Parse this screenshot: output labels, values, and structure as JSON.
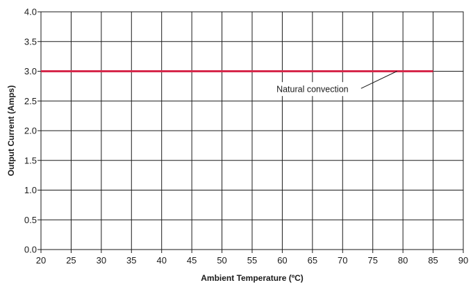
{
  "chart_data": {
    "type": "line",
    "title": "",
    "xlabel": "Ambient Temperature (ºC)",
    "ylabel": "Output Current (Amps)",
    "xlim": [
      20,
      90
    ],
    "ylim": [
      0,
      4
    ],
    "x_ticks": [
      20,
      25,
      30,
      35,
      40,
      45,
      50,
      55,
      60,
      65,
      70,
      75,
      80,
      85,
      90
    ],
    "y_ticks": [
      "0.0",
      "0.5",
      "1.0",
      "1.5",
      "2.0",
      "2.5",
      "3.0",
      "3.5",
      "4.0"
    ],
    "grid": true,
    "series": [
      {
        "name": "Natural convection",
        "color": "#d6284a",
        "x": [
          20,
          85
        ],
        "y": [
          3.0,
          3.0
        ]
      }
    ],
    "annotations": [
      {
        "text": "Natural convection",
        "x": 65,
        "y": 2.7,
        "points_to": {
          "x": 79,
          "y": 3.0
        }
      }
    ]
  }
}
